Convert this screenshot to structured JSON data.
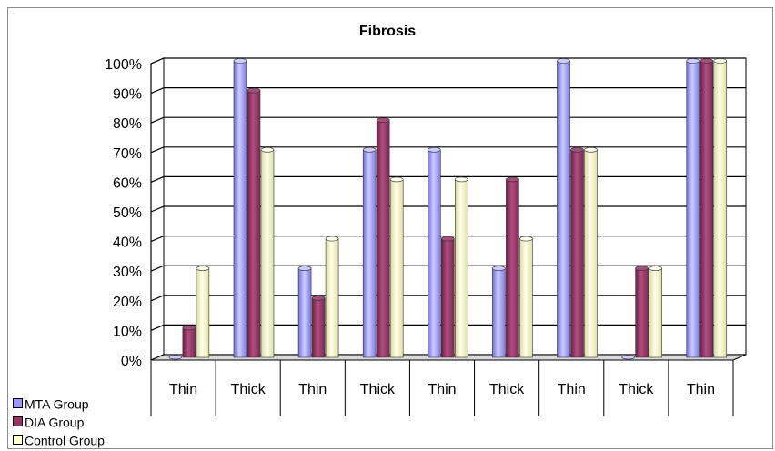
{
  "chart_data": {
    "type": "bar",
    "title": "Fibrosis",
    "categories": [
      "Thin",
      "Thick",
      "Thin",
      "Thick",
      "Thin",
      "Thick",
      "Thin",
      "Thick",
      "Thin"
    ],
    "series": [
      {
        "name": "MTA Group",
        "color": "#9999FF",
        "values": [
          0,
          100,
          30,
          70,
          70,
          30,
          100,
          0,
          100
        ]
      },
      {
        "name": "DIA Group",
        "color": "#993366",
        "values": [
          10,
          90,
          20,
          80,
          40,
          60,
          70,
          30,
          100
        ]
      },
      {
        "name": "Control Group",
        "color": "#FFFFCC",
        "values": [
          30,
          70,
          40,
          60,
          60,
          40,
          70,
          30,
          100
        ]
      }
    ],
    "y_ticks": [
      "0%",
      "10%",
      "20%",
      "30%",
      "40%",
      "50%",
      "60%",
      "70%",
      "80%",
      "90%",
      "100%"
    ],
    "ylim": [
      0,
      100
    ],
    "grid": true,
    "legend_position": "bottom-left"
  }
}
